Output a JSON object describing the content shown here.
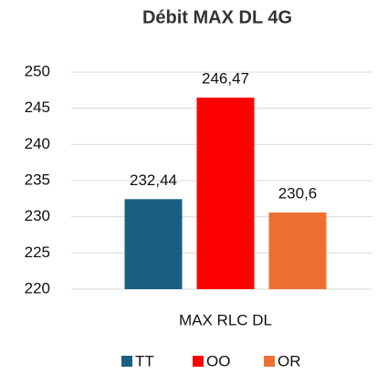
{
  "chart_data": {
    "type": "bar",
    "title": "Débit MAX DL 4G",
    "categories": [
      "MAX RLC DL"
    ],
    "series": [
      {
        "name": "TT",
        "color": "#1b5f80",
        "values": [
          232.44
        ],
        "value_labels": [
          "232,44"
        ]
      },
      {
        "name": "OO",
        "color": "#ff0000",
        "values": [
          246.47
        ],
        "value_labels": [
          "246,47"
        ]
      },
      {
        "name": "OR",
        "color": "#ed7031",
        "values": [
          230.6
        ],
        "value_labels": [
          "230,6"
        ]
      }
    ],
    "ylim": [
      220,
      250
    ],
    "yticks": [
      220,
      225,
      230,
      235,
      240,
      245,
      250
    ],
    "grid": true,
    "legend": "bottom"
  }
}
